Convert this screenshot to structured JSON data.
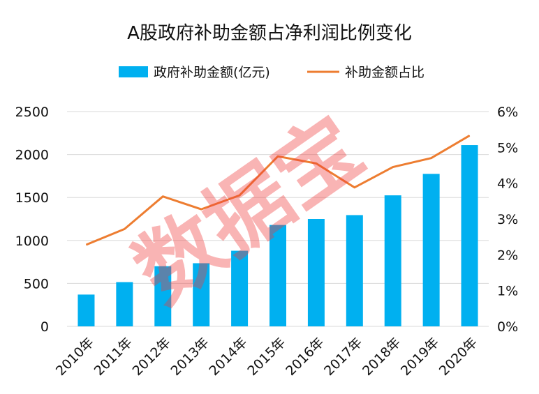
{
  "chart_data": {
    "type": "bar",
    "title": "A股政府补助金额占净利润比例变化",
    "categories": [
      "2010年",
      "2011年",
      "2012年",
      "2013年",
      "2014年",
      "2015年",
      "2016年",
      "2017年",
      "2018年",
      "2019年",
      "2020年"
    ],
    "series": [
      {
        "name": "政府补助金额(亿元)",
        "type": "bar",
        "axis": "left",
        "color": "#00b0f0",
        "values": [
          370,
          515,
          700,
          735,
          880,
          1180,
          1250,
          1295,
          1525,
          1775,
          2110
        ]
      },
      {
        "name": "补助金额占比",
        "type": "line",
        "axis": "right",
        "color": "#ed7d31",
        "values": [
          2.28,
          2.72,
          3.63,
          3.27,
          3.66,
          4.75,
          4.55,
          3.88,
          4.45,
          4.7,
          5.33
        ]
      }
    ],
    "y_left": {
      "range": [
        0,
        2500
      ],
      "ticks": [
        "0",
        "500",
        "1000",
        "1500",
        "2000",
        "2500"
      ],
      "tick_values": [
        0,
        500,
        1000,
        1500,
        2000,
        2500
      ]
    },
    "y_right": {
      "range": [
        0,
        6
      ],
      "ticks": [
        "0%",
        "1%",
        "2%",
        "3%",
        "4%",
        "5%",
        "6%"
      ],
      "tick_values": [
        0,
        1,
        2,
        3,
        4,
        5,
        6
      ]
    },
    "grid": true,
    "legend": "top-center",
    "watermark": "数据宝"
  }
}
